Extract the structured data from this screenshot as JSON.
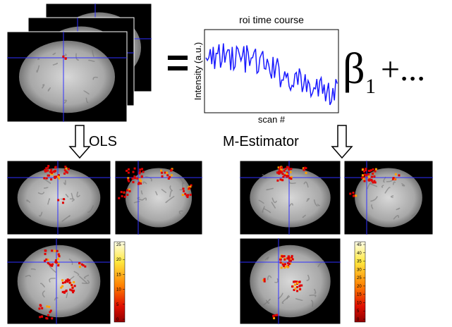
{
  "equation": {
    "equals": "=",
    "beta": "β",
    "subscript": "1",
    "plus": "+...",
    "plot": {
      "title": "roi time course",
      "ylabel": "Intensity (a.u.)",
      "xlabel": "scan #"
    }
  },
  "methods": [
    {
      "label": "OLS",
      "colorbar_ticks": [
        "25",
        "20",
        "15",
        "10",
        "5",
        "0"
      ]
    },
    {
      "label": "M-Estimator",
      "colorbar_ticks": [
        "45",
        "40",
        "35",
        "30",
        "25",
        "20",
        "15",
        "10",
        "5",
        "0"
      ]
    }
  ]
}
